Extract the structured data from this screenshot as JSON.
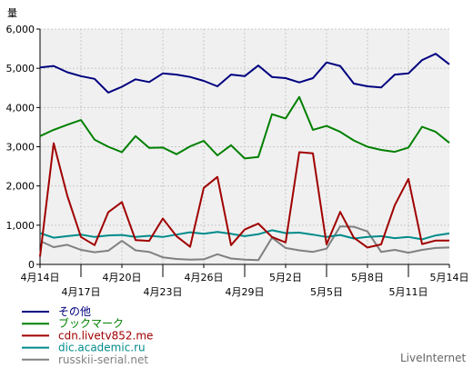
{
  "brand": "LiveInternet",
  "chart_data": {
    "type": "line",
    "ylabel": "量",
    "ylim": [
      0,
      6000
    ],
    "yticks": [
      0,
      1000,
      2000,
      3000,
      4000,
      5000,
      6000
    ],
    "ytick_labels": [
      "0",
      "1,000",
      "2,000",
      "3,000",
      "4,000",
      "5,000",
      "6,000"
    ],
    "grid": true,
    "legend_position": "bottom-left",
    "x": [
      "4月14日",
      "4月15日",
      "4月16日",
      "4月17日",
      "4月18日",
      "4月19日",
      "4月20日",
      "4月21日",
      "4月22日",
      "4月23日",
      "4月24日",
      "4月25日",
      "4月26日",
      "4月27日",
      "4月28日",
      "4月29日",
      "4月30日",
      "5月1日",
      "5月2日",
      "5月3日",
      "5月4日",
      "5月5日",
      "5月6日",
      "5月7日",
      "5月8日",
      "5月9日",
      "5月10日",
      "5月11日",
      "5月12日",
      "5月13日",
      "5月14日"
    ],
    "x_tick_labels": [
      {
        "label": "4月14日",
        "index": 0,
        "row": 0
      },
      {
        "label": "4月17日",
        "index": 3,
        "row": 1
      },
      {
        "label": "4月20日",
        "index": 6,
        "row": 0
      },
      {
        "label": "4月23日",
        "index": 9,
        "row": 1
      },
      {
        "label": "4月26日",
        "index": 12,
        "row": 0
      },
      {
        "label": "4月29日",
        "index": 15,
        "row": 1
      },
      {
        "label": "5月2日",
        "index": 18,
        "row": 0
      },
      {
        "label": "5月5日",
        "index": 21,
        "row": 1
      },
      {
        "label": "5月8日",
        "index": 24,
        "row": 0
      },
      {
        "label": "5月11日",
        "index": 27,
        "row": 1
      },
      {
        "label": "5月14日",
        "index": 30,
        "row": 0
      }
    ],
    "series": [
      {
        "name": "その他",
        "color": "#000080",
        "values": [
          5020,
          5060,
          4900,
          4800,
          4730,
          4380,
          4530,
          4720,
          4650,
          4870,
          4840,
          4780,
          4680,
          4540,
          4840,
          4800,
          5070,
          4780,
          4750,
          4640,
          4750,
          5150,
          5060,
          4610,
          4540,
          4510,
          4840,
          4870,
          5210,
          5370,
          5100
        ]
      },
      {
        "name": "ブックマーク",
        "color": "#008000",
        "values": [
          3270,
          3430,
          3560,
          3680,
          3180,
          3000,
          2860,
          3270,
          2970,
          2980,
          2810,
          3010,
          3150,
          2780,
          3040,
          2700,
          2740,
          3830,
          3720,
          4270,
          3430,
          3530,
          3380,
          3160,
          3000,
          2920,
          2870,
          2980,
          3510,
          3380,
          3100
        ]
      },
      {
        "name": "cdn.livetv852.me",
        "color": "#a00000",
        "values": [
          200,
          3090,
          1750,
          700,
          490,
          1330,
          1590,
          620,
          600,
          1170,
          720,
          450,
          1950,
          2230,
          490,
          890,
          1040,
          700,
          560,
          2860,
          2830,
          510,
          1340,
          680,
          430,
          510,
          1510,
          2180,
          520,
          610,
          610
        ]
      },
      {
        "name": "dic.academic.ru",
        "color": "#008b8b",
        "values": [
          800,
          680,
          720,
          760,
          700,
          740,
          750,
          700,
          730,
          700,
          760,
          820,
          780,
          830,
          780,
          720,
          770,
          870,
          800,
          810,
          760,
          700,
          750,
          660,
          700,
          720,
          670,
          700,
          640,
          740,
          790
        ]
      },
      {
        "name": "russkii-serial.net",
        "color": "#808080",
        "values": [
          600,
          440,
          500,
          370,
          310,
          350,
          600,
          360,
          320,
          180,
          140,
          120,
          130,
          260,
          150,
          120,
          110,
          680,
          420,
          360,
          320,
          400,
          970,
          960,
          840,
          320,
          370,
          300,
          370,
          420,
          430
        ]
      }
    ]
  }
}
